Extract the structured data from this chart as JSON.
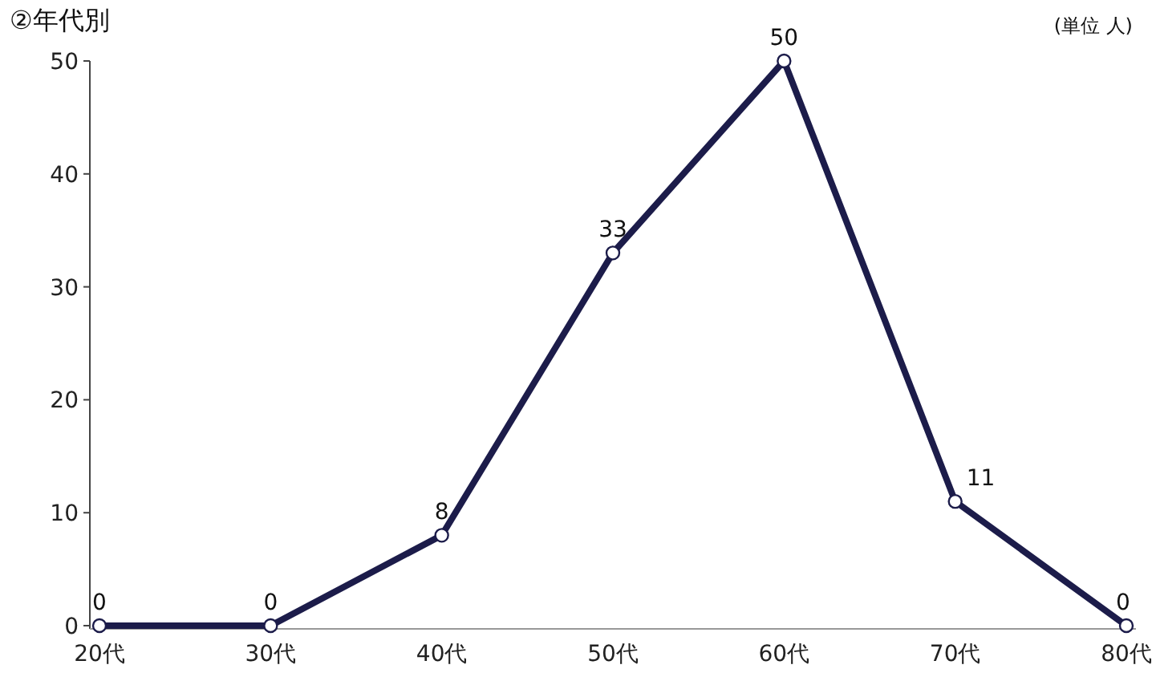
{
  "chart_data": {
    "type": "line",
    "title": "②年代別",
    "annotations": [
      "(単位 人)"
    ],
    "categories": [
      "20代",
      "30代",
      "40代",
      "50代",
      "60代",
      "70代",
      "80代"
    ],
    "values": [
      0,
      0,
      8,
      33,
      50,
      11,
      0
    ],
    "color": "#1c1c4a",
    "marker": "circle",
    "line_style": "solid",
    "ylim": [
      0,
      50
    ],
    "yticks": [
      0,
      10,
      20,
      30,
      40,
      50
    ],
    "data_labels": true
  }
}
